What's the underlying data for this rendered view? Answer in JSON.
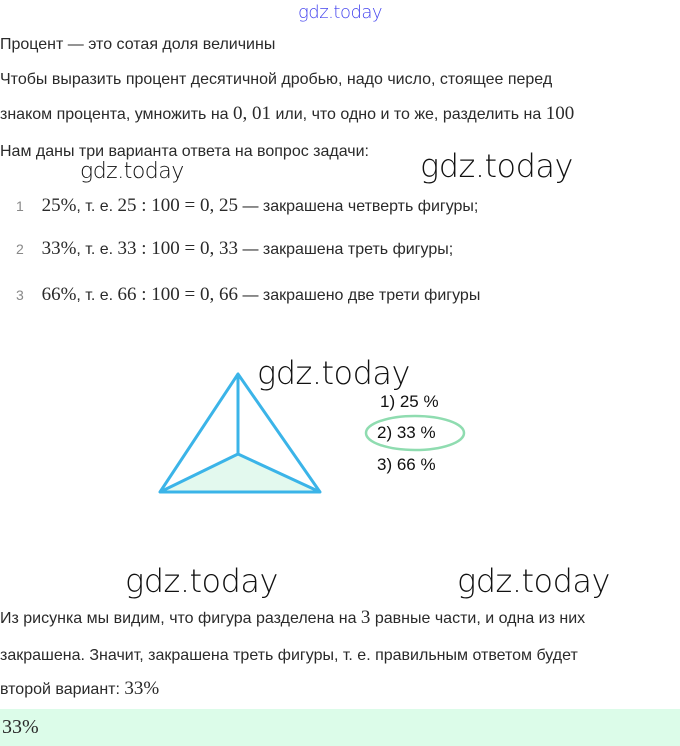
{
  "watermarks": {
    "top": "gdz.today",
    "w1": "gdz.today",
    "w2": "gdz.today",
    "w3": "gdz.today",
    "w4": "gdz.today",
    "w5": "gdz.today"
  },
  "intro": {
    "definition": "Процент — это сотая доля величины",
    "rule_line1": "Чтобы выразить процент десятичной дробью, надо число, стоящее перед",
    "rule_line2_a": "знаком процента, умножить на ",
    "rule_line2_m1": "0, 01",
    "rule_line2_b": " или, что одно и то же, разделить на ",
    "rule_line2_m2": "100",
    "options_intro": "Нам даны три варианта ответа на вопрос задачи:"
  },
  "options": [
    {
      "num": "1",
      "pct": "25%",
      "mid": ", т. е. ",
      "expr": "25 : 100 = 0, 25",
      "text": " — закрашена четверть фигуры;"
    },
    {
      "num": "2",
      "pct": "33%",
      "mid": ", т. е. ",
      "expr": "33 : 100 = 0, 33",
      "text": " — закрашена треть фигуры;"
    },
    {
      "num": "3",
      "pct": "66%",
      "mid": ", т. е. ",
      "expr": "66 : 100 = 0, 66",
      "text": " — закрашено две трети фигуры"
    }
  ],
  "figure": {
    "choices": [
      "1) 25 %",
      "2) 33 %",
      "3) 66 %"
    ],
    "selected_index": 1,
    "stroke_color": "#3bb4e8",
    "fill_color": "#e3f9ee",
    "circle_color": "#8fdcb0"
  },
  "conclusion": {
    "line1_a": "Из рисунка мы видим, что фигура разделена на ",
    "line1_m": "3",
    "line1_b": " равные части, и одна из них",
    "line2": "закрашена. Значит, закрашена треть фигуры, т. е. правильным ответом будет",
    "line3_a": "второй вариант: ",
    "line3_m": "33%"
  },
  "answer": {
    "value": "33%",
    "background": "#dcfce9"
  }
}
